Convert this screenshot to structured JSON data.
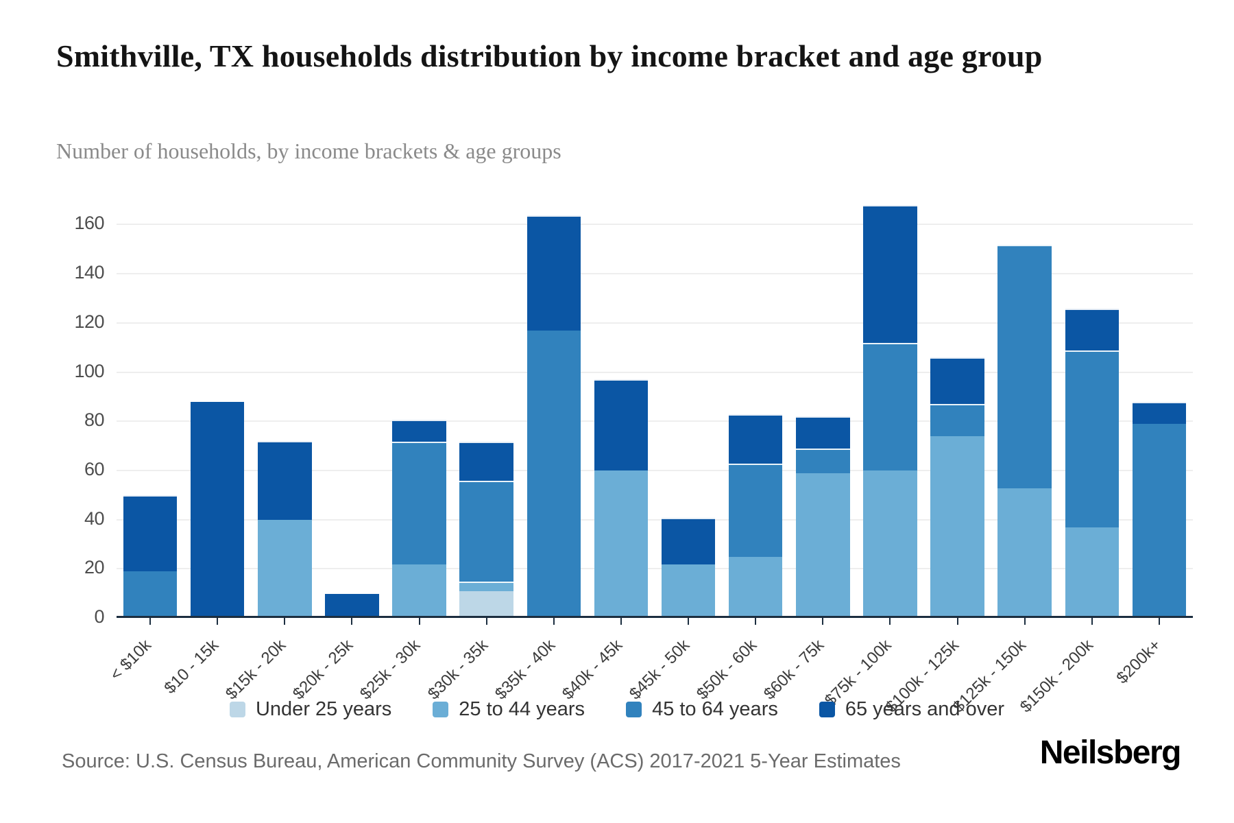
{
  "header": {
    "title": "Smithville, TX households distribution by income bracket and age group",
    "subtitle": "Number of households, by income brackets & age groups"
  },
  "footer": {
    "source": "Source: U.S. Census Bureau, American Community Survey (ACS) 2017-2021 5-Year Estimates",
    "brand": "Neilsberg"
  },
  "chart_data": {
    "type": "bar",
    "stacked": true,
    "title": "Smithville, TX households distribution by income bracket and age group",
    "subtitle": "Number of households, by income brackets & age groups",
    "xlabel": "",
    "ylabel": "Number of households",
    "ylim": [
      0,
      170
    ],
    "y_ticks": [
      0,
      20,
      40,
      60,
      80,
      100,
      120,
      140,
      160
    ],
    "grid": true,
    "legend_position": "bottom",
    "categories": [
      "< $10k",
      "$10 - 15k",
      "$15k - 20k",
      "$20k - 25k",
      "$25k - 30k",
      "$30k - 35k",
      "$35k - 40k",
      "$40k - 45k",
      "$45k - 50k",
      "$50k - 60k",
      "$60k - 75k",
      "$75k - 100k",
      "$100k - 125k",
      "$125k - 150k",
      "$150k - 200k",
      "$200k+"
    ],
    "series": [
      {
        "name": "Under 25 years",
        "color": "#bdd7e7",
        "values": [
          0,
          0,
          0,
          0,
          0,
          10,
          0,
          0,
          0,
          0,
          0,
          0,
          0,
          0,
          0,
          0
        ]
      },
      {
        "name": "25 to 44 years",
        "color": "#6baed6",
        "values": [
          0,
          0,
          39,
          0,
          21,
          4,
          0,
          59,
          21,
          24,
          58,
          59,
          73,
          52,
          36,
          0
        ]
      },
      {
        "name": "45 to 64 years",
        "color": "#3182bd",
        "values": [
          18,
          0,
          0,
          0,
          50,
          41,
          116,
          0,
          0,
          38,
          10,
          52,
          13,
          99,
          72,
          78
        ]
      },
      {
        "name": "65 years and over",
        "color": "#0b56a4",
        "values": [
          31,
          87,
          32,
          9,
          9,
          16,
          47,
          37,
          19,
          20,
          13,
          56,
          19,
          0,
          17,
          9
        ]
      }
    ],
    "totals": [
      49,
      87,
      71,
      9,
      80,
      71,
      163,
      96,
      40,
      82,
      81,
      167,
      105,
      151,
      125,
      87
    ]
  },
  "style": {
    "grid_color": "#eeeeee",
    "axis_color": "#1c2e40"
  }
}
